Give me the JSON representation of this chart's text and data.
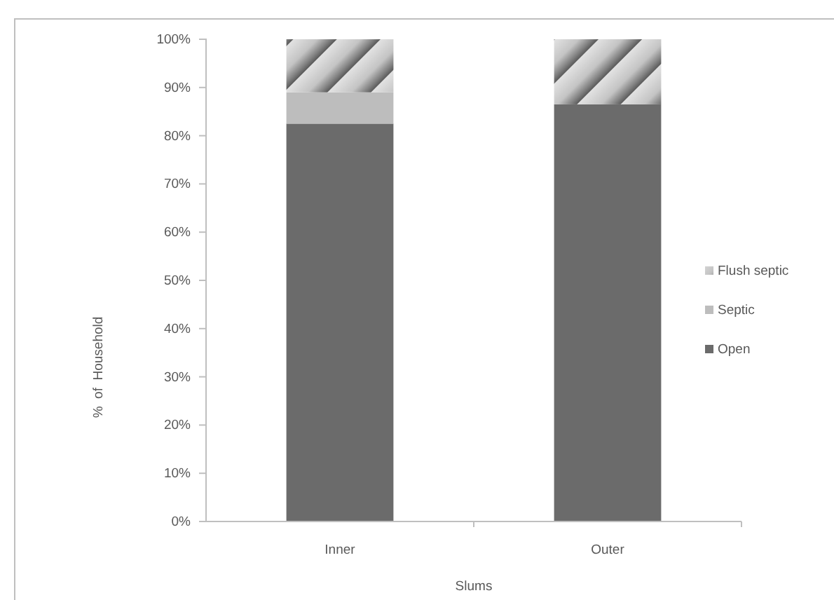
{
  "chart_data": {
    "type": "bar",
    "stacked": true,
    "xlabel": "Slums",
    "ylabel": "%  of  Household",
    "categories": [
      "Inner",
      "Outer"
    ],
    "series": [
      {
        "name": "Open",
        "color": "#6b6b6b",
        "values": [
          82.5,
          86.5
        ]
      },
      {
        "name": "Septic",
        "color": "#bdbdbd",
        "values": [
          6.5,
          0
        ]
      },
      {
        "name": "Flush septic",
        "color": "#c4c4c4",
        "values": [
          11,
          13.5
        ]
      }
    ],
    "ylim": [
      0,
      100
    ],
    "yticks": [
      {
        "value": 0,
        "label": "0%"
      },
      {
        "value": 10,
        "label": "10%"
      },
      {
        "value": 20,
        "label": "20%"
      },
      {
        "value": 30,
        "label": "30%"
      },
      {
        "value": 40,
        "label": "40%"
      },
      {
        "value": 50,
        "label": "50%"
      },
      {
        "value": 60,
        "label": "60%"
      },
      {
        "value": 70,
        "label": "70%"
      },
      {
        "value": 80,
        "label": "80%"
      },
      {
        "value": 90,
        "label": "90%"
      },
      {
        "value": 100,
        "label": "100%"
      }
    ],
    "legend": "right"
  }
}
